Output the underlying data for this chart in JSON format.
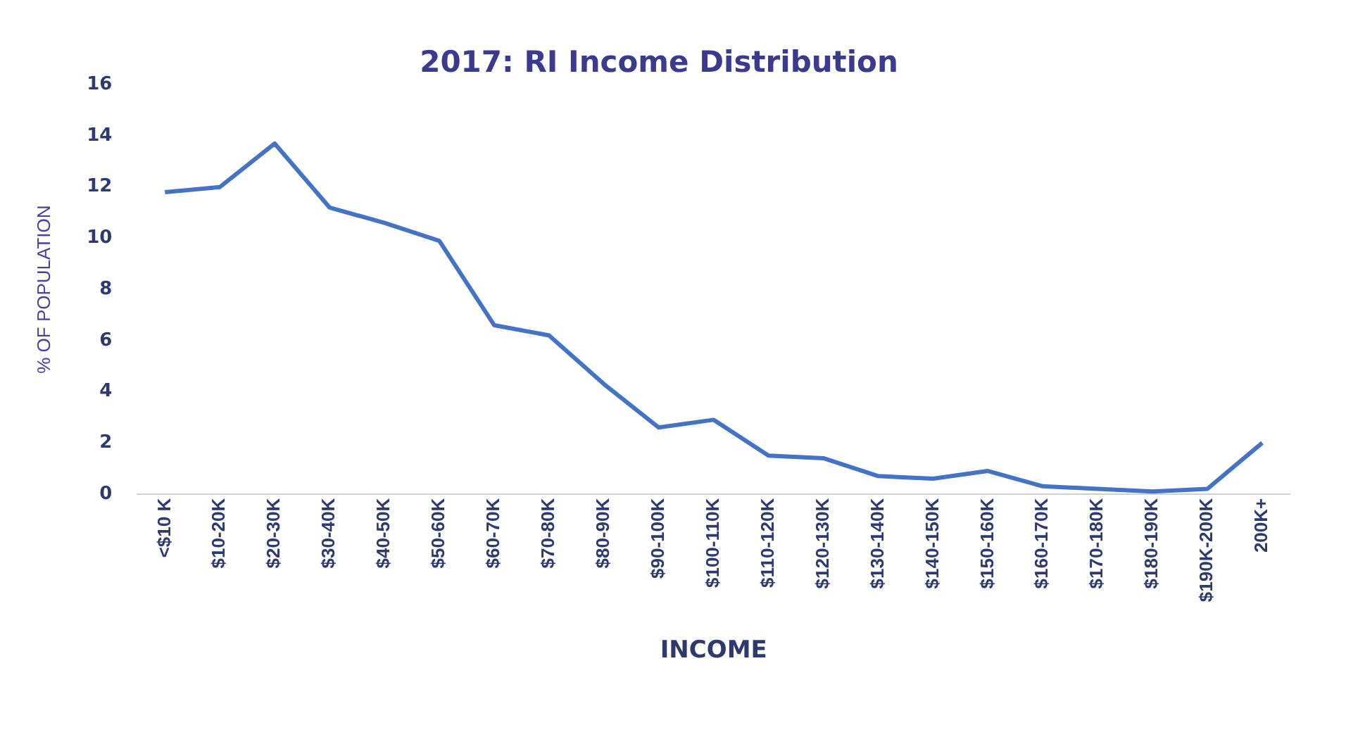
{
  "chart_data": {
    "type": "line",
    "title": "2017: RI Income Distribution",
    "xlabel": "INCOME",
    "ylabel": "% OF POPULATION",
    "categories": [
      "<$10 K",
      "$10-20K",
      "$20-30K",
      "$30-40K",
      "$40-50K",
      "$50-60K",
      "$60-70K",
      "$70-80K",
      "$80-90K",
      "$90-100K",
      "$100-110K",
      "$110-120K",
      "$120-130K",
      "$130-140K",
      "$140-150K",
      "$150-160K",
      "$160-170K",
      "$170-180K",
      "$180-190K",
      "$190K-200K",
      "200K+"
    ],
    "series": [
      {
        "color": "#4472c4",
        "values": [
          11.8,
          12,
          13.7,
          11.2,
          10.6,
          9.9,
          6.6,
          6.2,
          4.3,
          2.6,
          2.9,
          1.5,
          1.4,
          0.7,
          0.6,
          0.9,
          0.3,
          0.2,
          0.1,
          0.2,
          2.0
        ]
      }
    ],
    "ylim": [
      0,
      16
    ],
    "yticks": [
      0,
      2,
      4,
      6,
      8,
      10,
      12,
      14,
      16
    ],
    "grid": false,
    "legend": false,
    "marker": "none",
    "line_style": "solid"
  }
}
